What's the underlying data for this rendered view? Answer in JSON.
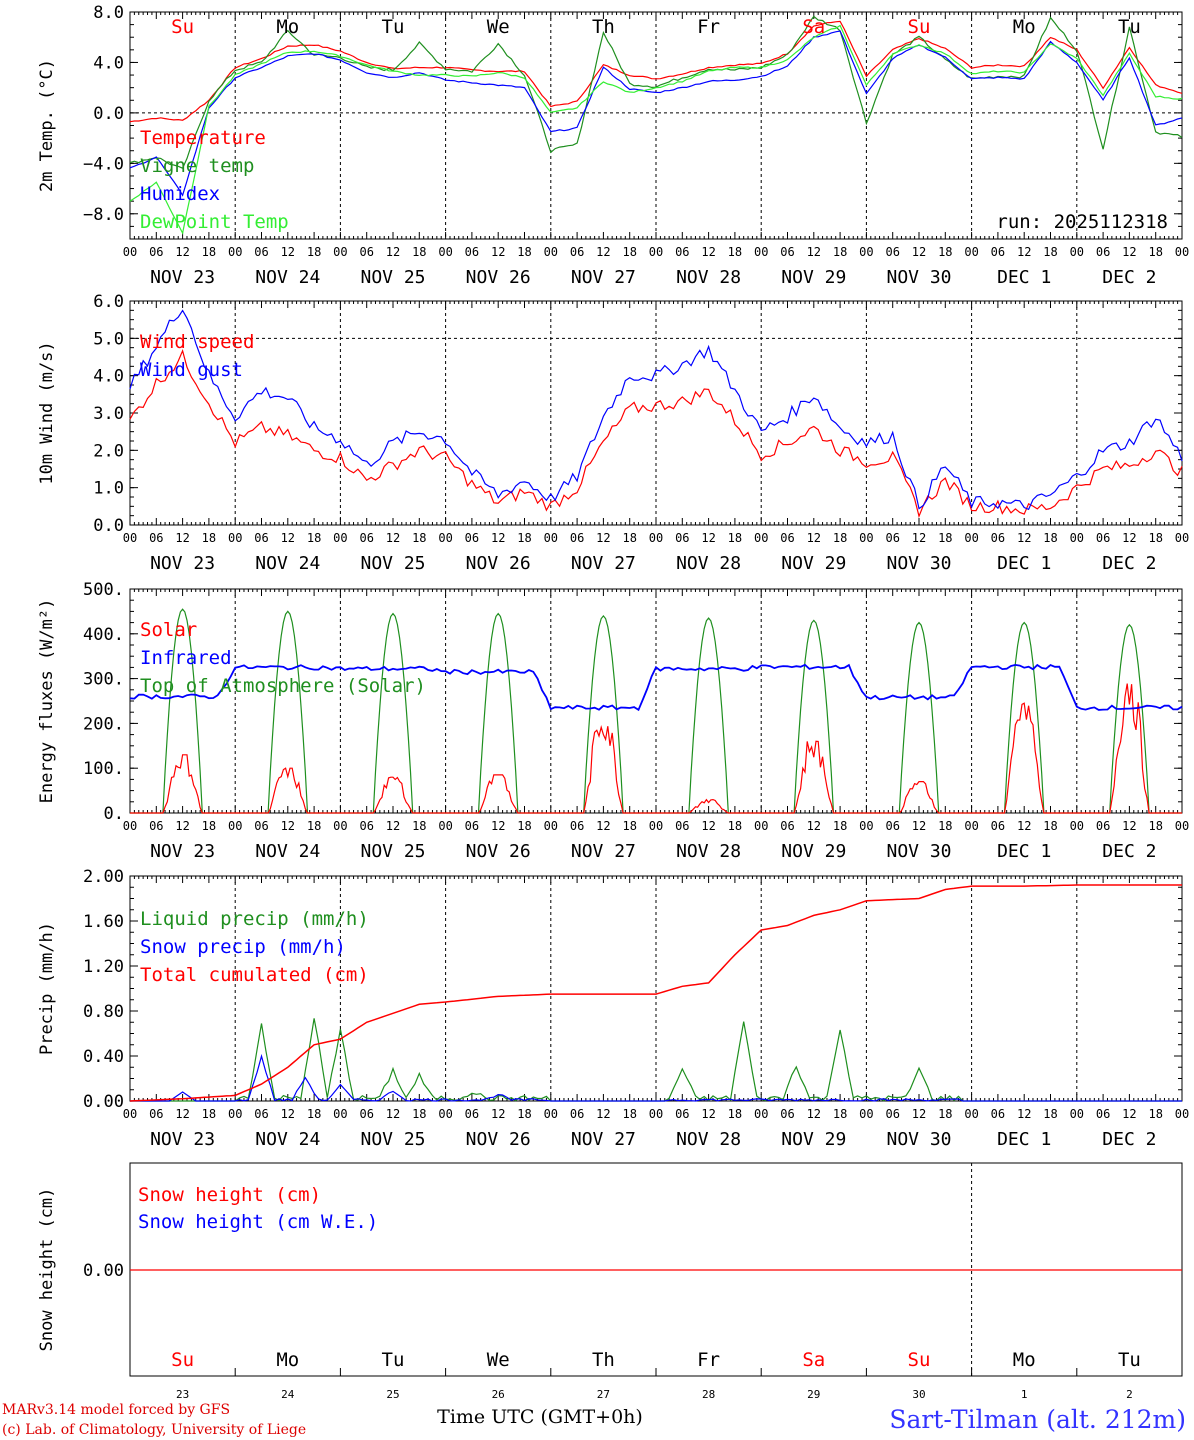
{
  "colors": {
    "red": "#ff0000",
    "green": "#1f8f1f",
    "blue": "#0000ff",
    "lightgreen": "#33ee33",
    "axis": "#000000",
    "station": "#3333ff",
    "credit": "#dd0000",
    "weekend": "#ff0000"
  },
  "x_axis": {
    "hour_labels": [
      "00",
      "06",
      "12",
      "18"
    ],
    "end_label": "00",
    "dates": [
      "NOV 23",
      "NOV 24",
      "NOV 25",
      "NOV 26",
      "NOV 27",
      "NOV 28",
      "NOV 29",
      "NOV 30",
      "DEC  1",
      "DEC  2"
    ],
    "weekdays": [
      "Su",
      "Mo",
      "Tu",
      "We",
      "Th",
      "Fr",
      "Sa",
      "Su",
      "Mo",
      "Tu"
    ],
    "weekday_weekend": [
      true,
      false,
      false,
      false,
      false,
      false,
      true,
      true,
      false,
      false
    ],
    "day_numbers": [
      "23",
      "24",
      "25",
      "26",
      "27",
      "28",
      "29",
      "30",
      "1",
      "2"
    ],
    "xlabel": "Time UTC (GMT+0h)"
  },
  "footer": {
    "credit_line1": "MARv3.14 model forced by GFS",
    "credit_line2": "(c) Lab. of Climatology, University of Liege",
    "station": "Sart-Tilman (alt. 212m)"
  },
  "chart_data": [
    {
      "id": "temperature",
      "type": "line",
      "ylabel": "2m Temp. (°C)",
      "ylim": [
        -10,
        8
      ],
      "yticks": [
        8,
        4,
        0,
        -4,
        -8
      ],
      "ytick_labels": [
        "8.0",
        "4.0",
        "0.0",
        "−4.0",
        "−8.0"
      ],
      "dashed_reference": 0,
      "annotation": "run: 2025112318",
      "x_hours": [
        0,
        6,
        12,
        18,
        24,
        30,
        36,
        42,
        48,
        54,
        60,
        66,
        72,
        78,
        84,
        90,
        96,
        102,
        108,
        114,
        120,
        126,
        132,
        138,
        144,
        150,
        156,
        162,
        168,
        174,
        180,
        186,
        192,
        198,
        204,
        210,
        216,
        222,
        228,
        234,
        240
      ],
      "series": [
        {
          "name": "Temperature",
          "color": "red",
          "values": [
            -0.7,
            -0.4,
            -0.6,
            1.0,
            3.6,
            4.3,
            5.3,
            5.4,
            4.9,
            4.0,
            3.5,
            3.6,
            3.6,
            3.4,
            3.3,
            3.3,
            0.5,
            0.9,
            3.8,
            3.0,
            2.7,
            3.1,
            3.6,
            3.8,
            3.9,
            4.7,
            6.9,
            7.3,
            2.9,
            5.0,
            5.9,
            5.1,
            3.6,
            3.8,
            3.7,
            6.0,
            5.0,
            2.0,
            5.2,
            2.2,
            1.6
          ]
        },
        {
          "name": "Vigne temp",
          "color": "green",
          "values": [
            -4.0,
            -3.5,
            -4.5,
            1.0,
            3.4,
            4.0,
            6.5,
            4.6,
            4.4,
            3.6,
            3.4,
            5.5,
            3.5,
            3.3,
            5.5,
            3.0,
            -3.0,
            -2.5,
            6.4,
            2.3,
            2.1,
            2.8,
            3.5,
            3.4,
            3.6,
            4.6,
            7.6,
            6.6,
            -0.8,
            4.6,
            6.0,
            4.2,
            2.7,
            2.9,
            2.9,
            7.5,
            5.0,
            -2.8,
            6.8,
            -1.5,
            -1.9
          ]
        },
        {
          "name": "Humidex",
          "color": "blue",
          "values": [
            -4.4,
            -3.5,
            -6.5,
            0.4,
            2.8,
            3.6,
            4.5,
            4.7,
            4.2,
            3.2,
            2.8,
            3.2,
            2.6,
            2.4,
            2.2,
            2.0,
            -1.5,
            -1.2,
            3.6,
            1.9,
            1.6,
            2.0,
            2.5,
            2.6,
            2.9,
            3.7,
            6.0,
            6.5,
            1.5,
            4.3,
            5.4,
            4.4,
            2.7,
            2.8,
            2.7,
            5.6,
            4.0,
            1.0,
            4.4,
            -1.0,
            -0.4
          ]
        },
        {
          "name": "DewPoint Temp",
          "color": "lightgreen",
          "values": [
            -7.0,
            -5.5,
            -9.5,
            0.5,
            3.0,
            3.9,
            4.8,
            4.9,
            4.5,
            3.8,
            3.3,
            3.0,
            3.0,
            2.9,
            3.2,
            2.8,
            0.0,
            0.4,
            2.5,
            1.6,
            2.0,
            2.5,
            3.3,
            3.6,
            3.6,
            4.2,
            6.0,
            6.9,
            2.2,
            4.7,
            5.4,
            4.7,
            3.1,
            3.3,
            3.2,
            5.5,
            4.3,
            1.4,
            4.7,
            1.3,
            1.1
          ]
        }
      ]
    },
    {
      "id": "wind",
      "type": "line",
      "ylabel": "10m Wind (m/s)",
      "ylim": [
        0,
        6
      ],
      "yticks": [
        6,
        5,
        4,
        3,
        2,
        1,
        0
      ],
      "ytick_labels": [
        "6.0",
        "5.0",
        "4.0",
        "3.0",
        "2.0",
        "1.0",
        "0.0"
      ],
      "dashed_reference": 5,
      "x_hours": [
        0,
        6,
        12,
        18,
        24,
        30,
        36,
        42,
        48,
        54,
        60,
        66,
        72,
        78,
        84,
        90,
        96,
        102,
        108,
        114,
        120,
        126,
        132,
        138,
        144,
        150,
        156,
        162,
        168,
        174,
        180,
        186,
        192,
        198,
        204,
        210,
        216,
        222,
        228,
        234,
        240
      ],
      "series": [
        {
          "name": "Wind speed",
          "color": "red",
          "values": [
            2.8,
            3.8,
            4.5,
            3.3,
            2.2,
            2.6,
            2.4,
            2.0,
            1.8,
            1.2,
            1.6,
            2.0,
            1.8,
            1.1,
            0.6,
            0.9,
            0.5,
            1.0,
            2.2,
            3.1,
            3.2,
            3.3,
            3.6,
            2.8,
            1.9,
            2.2,
            2.6,
            2.0,
            1.7,
            1.8,
            0.4,
            1.2,
            0.5,
            0.5,
            0.4,
            0.5,
            1.0,
            1.5,
            1.6,
            2.0,
            1.4
          ]
        },
        {
          "name": "Wind gust",
          "color": "blue",
          "values": [
            3.7,
            4.8,
            5.9,
            4.0,
            2.9,
            3.6,
            3.4,
            2.6,
            2.3,
            1.6,
            2.2,
            2.5,
            2.3,
            1.4,
            0.8,
            1.2,
            0.7,
            1.3,
            2.9,
            4.0,
            4.0,
            4.3,
            4.7,
            3.6,
            2.5,
            2.9,
            3.5,
            2.6,
            2.2,
            2.4,
            0.5,
            1.6,
            0.6,
            0.6,
            0.5,
            0.8,
            1.3,
            2.0,
            2.2,
            2.9,
            1.8
          ]
        }
      ]
    },
    {
      "id": "energy",
      "type": "line",
      "ylabel": "Energy fluxes (W/m²)",
      "ylim": [
        0,
        500
      ],
      "yticks": [
        500,
        400,
        300,
        200,
        100,
        0
      ],
      "ytick_labels": [
        "500.",
        "400.",
        "300.",
        "200.",
        "100.",
        "0."
      ],
      "series": [
        {
          "name": "Solar",
          "color": "red",
          "daily_peaks": [
            130,
            100,
            80,
            85,
            215,
            30,
            160,
            70,
            245,
            290
          ]
        },
        {
          "name": "Infrared",
          "color": "blue",
          "daily_levels": [
            260,
            325,
            322,
            315,
            235,
            322,
            326,
            258,
            326,
            235
          ]
        },
        {
          "name": "Top of Atmosphere (Solar)",
          "color": "green",
          "daily_peaks": [
            455,
            450,
            445,
            445,
            440,
            435,
            430,
            425,
            425,
            420
          ]
        }
      ]
    },
    {
      "id": "precip",
      "type": "line",
      "ylabel": "Precip (mm/h)",
      "ylim": [
        0,
        2
      ],
      "yticks": [
        2,
        1.6,
        1.2,
        0.8,
        0.4,
        0
      ],
      "ytick_labels": [
        "2.00",
        "1.60",
        "1.20",
        "0.80",
        "0.40",
        "0.00"
      ],
      "x_hours": [
        0,
        12,
        24,
        30,
        36,
        42,
        48,
        54,
        60,
        66,
        72,
        84,
        96,
        108,
        120,
        126,
        132,
        138,
        144,
        150,
        156,
        162,
        168,
        174,
        180,
        186,
        192,
        204,
        216,
        228,
        240
      ],
      "series": [
        {
          "name": "Liquid precip (mm/h)",
          "color": "green",
          "spikes": [
            [
              30,
              0.66
            ],
            [
              42,
              0.72
            ],
            [
              48,
              0.6
            ],
            [
              60,
              0.25
            ],
            [
              66,
              0.2
            ],
            [
              78,
              0.06
            ],
            [
              126,
              0.26
            ],
            [
              140,
              0.68
            ],
            [
              152,
              0.3
            ],
            [
              162,
              0.63
            ],
            [
              180,
              0.26
            ]
          ]
        },
        {
          "name": "Snow precip (mm/h)",
          "color": "blue",
          "spikes": [
            [
              12,
              0.08
            ],
            [
              30,
              0.38
            ],
            [
              40,
              0.2
            ],
            [
              48,
              0.13
            ],
            [
              60,
              0.08
            ],
            [
              84,
              0.05
            ]
          ]
        },
        {
          "name": "Total cumulated (cm)",
          "color": "red",
          "values": [
            0.0,
            0.02,
            0.05,
            0.15,
            0.3,
            0.5,
            0.55,
            0.7,
            0.78,
            0.86,
            0.88,
            0.93,
            0.95,
            0.95,
            0.95,
            1.02,
            1.05,
            1.3,
            1.52,
            1.56,
            1.65,
            1.7,
            1.78,
            1.79,
            1.8,
            1.88,
            1.91,
            1.91,
            1.92,
            1.92,
            1.92
          ]
        }
      ]
    },
    {
      "id": "snow",
      "type": "line",
      "ylabel": "Snow height (cm)",
      "ytick_labels": [
        "0.00"
      ],
      "series": [
        {
          "name": "Snow height (cm)",
          "color": "red",
          "values": [
            0,
            0
          ]
        },
        {
          "name": "Snow height (cm W.E.)",
          "color": "blue",
          "values": [
            0,
            0
          ]
        }
      ]
    }
  ]
}
